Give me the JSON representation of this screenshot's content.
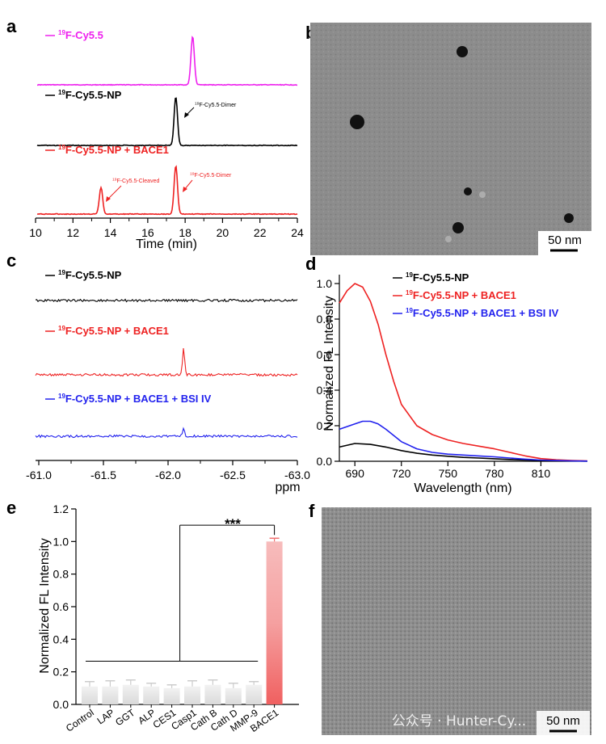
{
  "panels": {
    "a": {
      "label": "a"
    },
    "b": {
      "label": "b",
      "scalebar": "50 nm"
    },
    "c": {
      "label": "c"
    },
    "d": {
      "label": "d"
    },
    "e": {
      "label": "e",
      "significance": "***"
    },
    "f": {
      "label": "f",
      "scalebar": "50 nm"
    }
  },
  "colors": {
    "magenta": "#ee22ee",
    "black": "#000000",
    "red": "#ee2222",
    "blue": "#2222ee"
  },
  "watermark": "公众号 · Hunter-Cy...",
  "chart_data": [
    {
      "panel": "a",
      "type": "line",
      "xlabel": "Time (min)",
      "xlim": [
        10,
        24
      ],
      "xticks": [
        "10",
        "12",
        "14",
        "16",
        "18",
        "20",
        "22",
        "24"
      ],
      "series": [
        {
          "name": "19F-Cy5.5",
          "color": "#ee22ee",
          "peaks": [
            {
              "x": 18.4,
              "height": 1.0
            }
          ]
        },
        {
          "name": "19F-Cy5.5-NP",
          "color": "#000000",
          "peaks": [
            {
              "x": 17.5,
              "height": 1.0
            }
          ]
        },
        {
          "name": "19F-Cy5.5-NP + BACE1",
          "color": "#ee2222",
          "peaks": [
            {
              "x": 13.5,
              "height": 0.55
            },
            {
              "x": 17.5,
              "height": 1.0
            }
          ]
        }
      ],
      "annotations": [
        {
          "text": "19F-Cy5.5-Dimer",
          "series": 1
        },
        {
          "text": "19F-Cy5.5-Cleaved",
          "series": 2
        },
        {
          "text": "19F-Cy5.5-Dimer",
          "series": 2
        }
      ]
    },
    {
      "panel": "c",
      "type": "line",
      "xlabel": "ppm",
      "xlim": [
        -61.0,
        -63.0
      ],
      "xticks": [
        "-61.0",
        "-61.5",
        "-62.0",
        "-62.5",
        "-63.0"
      ],
      "series": [
        {
          "name": "19F-Cy5.5-NP",
          "color": "#000000",
          "peak": null
        },
        {
          "name": "19F-Cy5.5-NP + BACE1",
          "color": "#ee2222",
          "peak": {
            "x": -62.12,
            "height": 1.0
          }
        },
        {
          "name": "19F-Cy5.5-NP + BACE1 + BSI IV",
          "color": "#2222ee",
          "peak": {
            "x": -62.12,
            "height": 0.35
          }
        }
      ]
    },
    {
      "panel": "d",
      "type": "line",
      "xlabel": "Wavelength (nm)",
      "ylabel": "Normalized FL Intensity",
      "xlim": [
        680,
        840
      ],
      "ylim": [
        0,
        1.05
      ],
      "xticks": [
        "690",
        "720",
        "750",
        "780",
        "810"
      ],
      "yticks": [
        "0.0",
        "0.2",
        "0.4",
        "0.6",
        "0.8",
        "1.0"
      ],
      "series": [
        {
          "name": "19F-Cy5.5-NP",
          "color": "#000000",
          "x": [
            680,
            690,
            700,
            710,
            720,
            730,
            740,
            750,
            760,
            770,
            780,
            790,
            800,
            810,
            820,
            830,
            840
          ],
          "y": [
            0.08,
            0.1,
            0.095,
            0.08,
            0.06,
            0.045,
            0.035,
            0.028,
            0.022,
            0.018,
            0.014,
            0.01,
            0.007,
            0.005,
            0.003,
            0.002,
            0.001
          ]
        },
        {
          "name": "19F-Cy5.5-NP + BACE1",
          "color": "#ee2222",
          "x": [
            680,
            685,
            690,
            695,
            700,
            705,
            710,
            715,
            720,
            730,
            740,
            750,
            760,
            770,
            780,
            790,
            800,
            810,
            820,
            830,
            840
          ],
          "y": [
            0.89,
            0.96,
            1.0,
            0.98,
            0.9,
            0.77,
            0.6,
            0.45,
            0.32,
            0.2,
            0.15,
            0.12,
            0.1,
            0.085,
            0.07,
            0.05,
            0.03,
            0.015,
            0.008,
            0.004,
            0.002
          ]
        },
        {
          "name": "19F-Cy5.5-NP + BACE1 + BSI IV",
          "color": "#2222ee",
          "x": [
            680,
            690,
            695,
            700,
            705,
            710,
            720,
            730,
            740,
            750,
            760,
            770,
            780,
            790,
            800,
            810,
            820,
            830,
            840
          ],
          "y": [
            0.18,
            0.21,
            0.225,
            0.225,
            0.21,
            0.18,
            0.11,
            0.07,
            0.05,
            0.04,
            0.035,
            0.03,
            0.025,
            0.018,
            0.012,
            0.007,
            0.004,
            0.002,
            0.001
          ]
        }
      ]
    },
    {
      "panel": "e",
      "type": "bar",
      "ylabel": "Normalized FL Intensity",
      "ylim": [
        0,
        1.2
      ],
      "yticks": [
        "0.0",
        "0.2",
        "0.4",
        "0.6",
        "0.8",
        "1.0",
        "1.2"
      ],
      "categories": [
        "Control",
        "LAP",
        "GGT",
        "ALP",
        "CES1",
        "Casp1",
        "Cath B",
        "Cath D",
        "MMP-9",
        "BACE1"
      ],
      "values": [
        0.11,
        0.11,
        0.12,
        0.11,
        0.1,
        0.11,
        0.12,
        0.1,
        0.12,
        1.0
      ],
      "errors": [
        0.03,
        0.035,
        0.03,
        0.02,
        0.02,
        0.035,
        0.03,
        0.03,
        0.02,
        0.02
      ]
    }
  ]
}
